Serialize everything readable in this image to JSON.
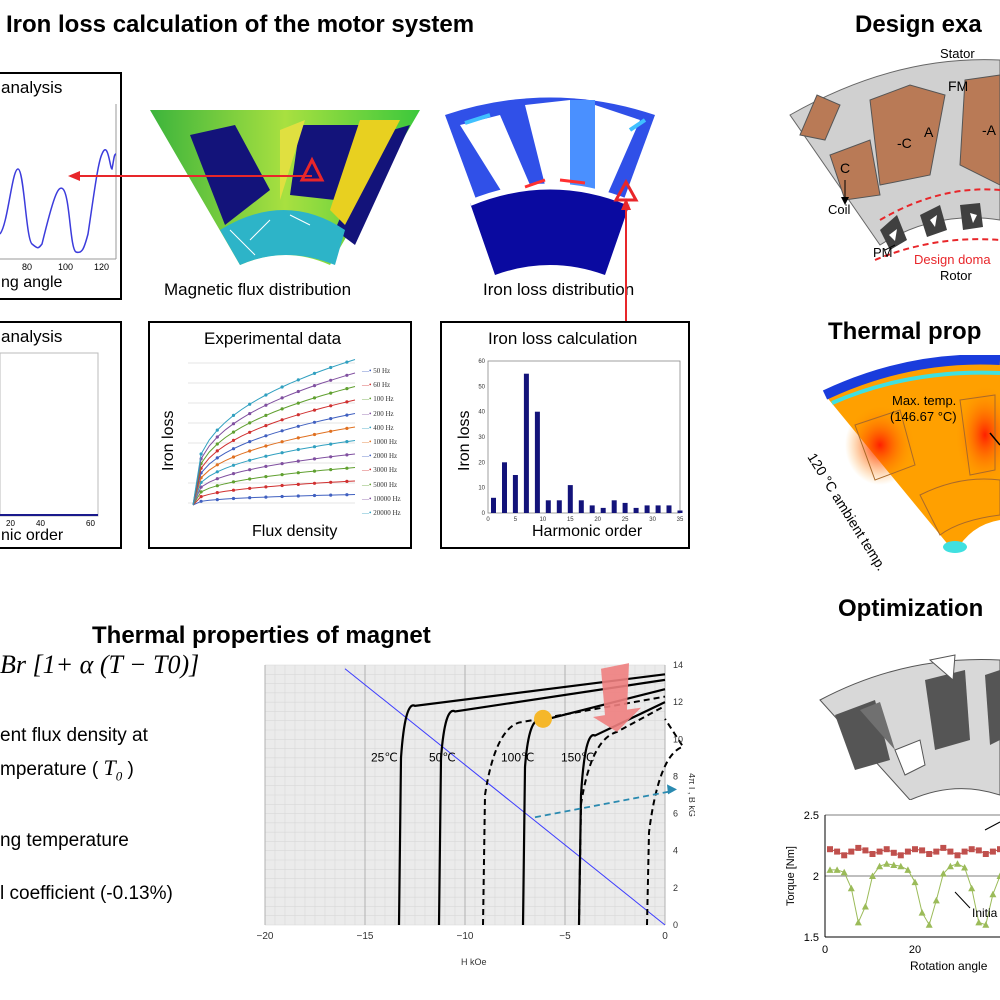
{
  "headings": {
    "iron_loss": "Iron loss calculation of the motor system",
    "design_example": "Design exa",
    "thermal_props_top": "Thermal prop",
    "thermal_magnet": "Thermal properties of magnet",
    "optimization": "Optimization"
  },
  "captions": {
    "flux_distribution": "Magnetic flux distribution",
    "iron_loss_distribution": "Iron loss distribution"
  },
  "panels": {
    "time_analysis": {
      "title": "analysis",
      "xlabel": "ng angle",
      "ticks": [
        "80",
        "100",
        "120"
      ]
    },
    "harmonic_analysis": {
      "title": "analysis",
      "xlabel": "nic order",
      "ticks": [
        "20",
        "40",
        "60"
      ]
    },
    "experimental": {
      "title": "Experimental data",
      "xlabel": "Flux density",
      "ylabel": "Iron loss",
      "legend": [
        "50 Hz",
        "60 Hz",
        "100 Hz",
        "200 Hz",
        "400 Hz",
        "1000 Hz",
        "2000 Hz",
        "3000 Hz",
        "5000 Hz",
        "10000 Hz",
        "20000 Hz"
      ]
    },
    "iron_loss_calc": {
      "title": "Iron loss calculation",
      "xlabel": "Harmonic order",
      "ylabel": "Iron loss"
    }
  },
  "chart_data": [
    {
      "type": "bar",
      "title": "Iron loss calculation",
      "xlabel": "Harmonic order",
      "ylabel": "Iron loss",
      "x": [
        1,
        3,
        5,
        7,
        9,
        11,
        13,
        15,
        17,
        19,
        21,
        23,
        25,
        27,
        29,
        31,
        33,
        35
      ],
      "values": [
        6,
        20,
        15,
        55,
        40,
        5,
        5,
        11,
        5,
        3,
        2,
        5,
        4,
        2,
        3,
        3,
        3,
        1
      ],
      "xlim": [
        0,
        35
      ],
      "ylim": [
        0,
        60
      ],
      "xticks": [
        "0",
        "5",
        "10",
        "15",
        "20",
        "25",
        "30",
        "35"
      ],
      "yticks": [
        "0",
        "10",
        "20",
        "30",
        "40",
        "50",
        "60"
      ]
    },
    {
      "type": "line",
      "title": "",
      "xlabel": "H  kOe",
      "ylabel": "4π I , B  kG",
      "xlim": [
        -20,
        0
      ],
      "ylim": [
        0,
        14
      ],
      "xticks": [
        "−20",
        "−15",
        "−10",
        "−5",
        "0"
      ],
      "yticks": [
        "0",
        "2",
        "4",
        "6",
        "8",
        "10",
        "12",
        "14"
      ],
      "series": [
        {
          "name": "25℃",
          "points": [
            [
              -13.3,
              0
            ],
            [
              -13.2,
              9
            ],
            [
              -12.5,
              11.8
            ],
            [
              0,
              13.5
            ]
          ]
        },
        {
          "name": "50℃",
          "points": [
            [
              -11.3,
              0
            ],
            [
              -11.2,
              9
            ],
            [
              -10.5,
              11.5
            ],
            [
              0,
              13.2
            ]
          ]
        },
        {
          "name": "100℃",
          "points": [
            [
              -7.1,
              0
            ],
            [
              -7.0,
              8.5
            ],
            [
              -6.2,
              11
            ],
            [
              0,
              12.7
            ]
          ]
        },
        {
          "name": "150℃",
          "points": [
            [
              -4.3,
              0
            ],
            [
              -4.2,
              7
            ],
            [
              -3.5,
              10.2
            ],
            [
              0,
              12.0
            ]
          ]
        }
      ],
      "load_line": [
        [
          -16,
          13.8
        ],
        [
          0,
          0
        ]
      ]
    },
    {
      "type": "line",
      "title": "",
      "xlabel": "Rotation angle",
      "ylabel": "Torque [Nm]",
      "xlim": [
        0,
        40
      ],
      "ylim": [
        1.5,
        2.5
      ],
      "xticks": [
        "0",
        "20"
      ],
      "yticks": [
        "1.5",
        "2",
        "2.5"
      ],
      "series": [
        {
          "name": "",
          "color": "#c0504d",
          "values": [
            2.22,
            2.2,
            2.17,
            2.2,
            2.23,
            2.21,
            2.18,
            2.2,
            2.22,
            2.19,
            2.17,
            2.2,
            2.22,
            2.21,
            2.18,
            2.2,
            2.23,
            2.2,
            2.17,
            2.2,
            2.22,
            2.21,
            2.18,
            2.2,
            2.22
          ]
        },
        {
          "name": "",
          "color": "#9bbb59",
          "values": [
            2.05,
            2.05,
            2.03,
            1.9,
            1.62,
            1.75,
            2.0,
            2.08,
            2.1,
            2.09,
            2.08,
            2.05,
            1.95,
            1.7,
            1.6,
            1.8,
            2.02,
            2.08,
            2.1,
            2.07,
            1.9,
            1.62,
            1.6,
            1.85,
            2.0
          ]
        }
      ],
      "annotation": "Initia"
    }
  ],
  "motor": {
    "stator": "Stator",
    "fm": "FM",
    "coil": "Coil",
    "pm": "PM",
    "rotor": "Rotor",
    "design_domain": "Design doma",
    "slots": [
      "C",
      "-C",
      "A",
      "-A"
    ]
  },
  "thermal": {
    "max_temp": "Max. temp.",
    "max_temp_value": "(146.67 °C)",
    "ambient": "120 °C ambient temp."
  },
  "magnet": {
    "equation_lhs": "B",
    "equation_rhs": "r [1+ α (T − T0)]",
    "desc1": "ent flux density at",
    "desc2": "mperature (",
    "t0": "T",
    "t0_sub": "0",
    "desc3": "ng temperature",
    "desc4": "l coefficient (-0.13%)"
  },
  "colors": {
    "red_arrow": "#e8262a",
    "navy": "#1a1a8c",
    "coil_brown": "#b97a56",
    "stator_gray": "#d0d0d0"
  }
}
